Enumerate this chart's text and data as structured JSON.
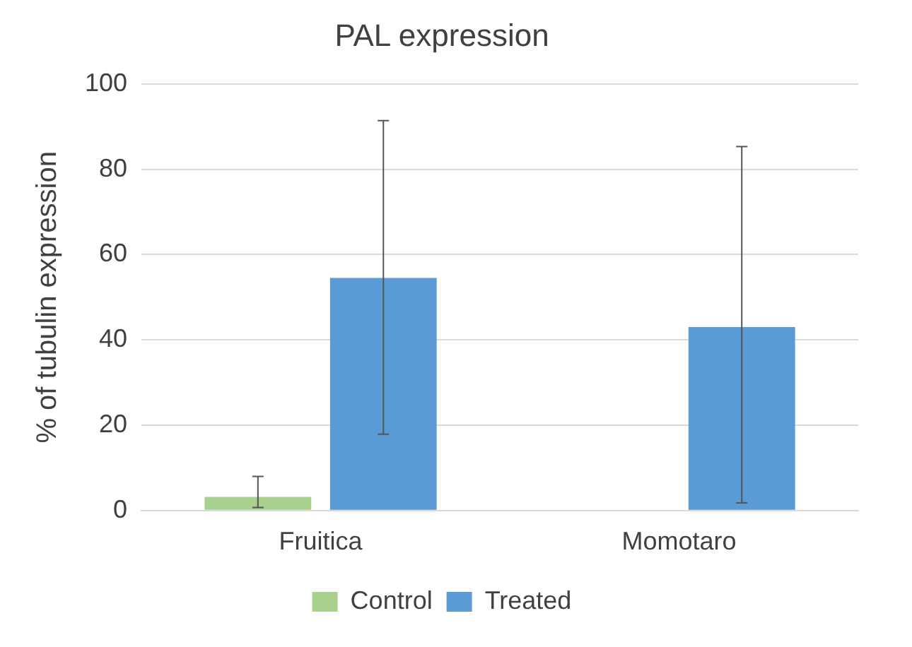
{
  "chart_data": {
    "type": "bar",
    "title": "PAL expression",
    "ylabel": "% of tubulin expression",
    "categories": [
      "Fruitica",
      "Momotaro"
    ],
    "series": [
      {
        "name": "Control",
        "color": "#a9d18e",
        "values": [
          3.2,
          0
        ],
        "errors": [
          [
            0.7,
            8
          ],
          null
        ]
      },
      {
        "name": "Treated",
        "color": "#5b9bd5",
        "values": [
          54.5,
          43
        ],
        "errors": [
          [
            17.9,
            91.4
          ],
          [
            1.8,
            85.3
          ]
        ]
      }
    ],
    "ylim": [
      0,
      100
    ],
    "yticks": [
      0,
      20,
      40,
      60,
      80,
      100
    ],
    "grid": "y",
    "legend": "bottom"
  }
}
